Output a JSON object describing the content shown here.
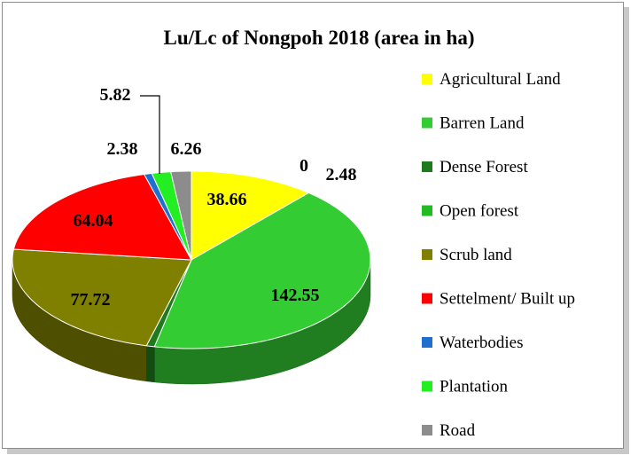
{
  "chart_data": {
    "type": "pie",
    "title": "Lu/Lc of Nongpoh 2018 (area in ha)",
    "slices": [
      {
        "label": "Agricultural Land",
        "value": 38.66,
        "color": "#ffff00",
        "display": "38.66"
      },
      {
        "label": "Barren Land",
        "value": 142.55,
        "color": "#33cc33",
        "display": "142.55"
      },
      {
        "label": "Dense Forest",
        "value": 2.48,
        "color": "#1f7a1f",
        "display": "2.48"
      },
      {
        "label": "Open forest",
        "value": 0,
        "color": "#22bb22",
        "display": "0"
      },
      {
        "label": "Scrub land",
        "value": 77.72,
        "color": "#808000",
        "display": "77.72"
      },
      {
        "label": "Settelment/ Built up",
        "value": 64.04,
        "color": "#ff0000",
        "display": "64.04"
      },
      {
        "label": "Waterbodies",
        "value": 2.38,
        "color": "#1f6fd0",
        "display": "2.38"
      },
      {
        "label": "Plantation",
        "value": 5.82,
        "color": "#22ee22",
        "display": "5.82"
      },
      {
        "label": "Road",
        "value": 6.26,
        "color": "#8c8c8c",
        "display": "6.26"
      }
    ],
    "legend_order": [
      "Agricultural Land",
      "Barren Land",
      "Dense Forest",
      "Open forest",
      "Scrub land",
      "Settelment/ Built up",
      "Waterbodies",
      "Plantation",
      "Road"
    ],
    "legend_colors": [
      "#ffff00",
      "#33cc33",
      "#1f7a1f",
      "#22bb22",
      "#808000",
      "#ff0000",
      "#1f6fd0",
      "#22ee22",
      "#8c8c8c"
    ],
    "legend_position": "right"
  }
}
